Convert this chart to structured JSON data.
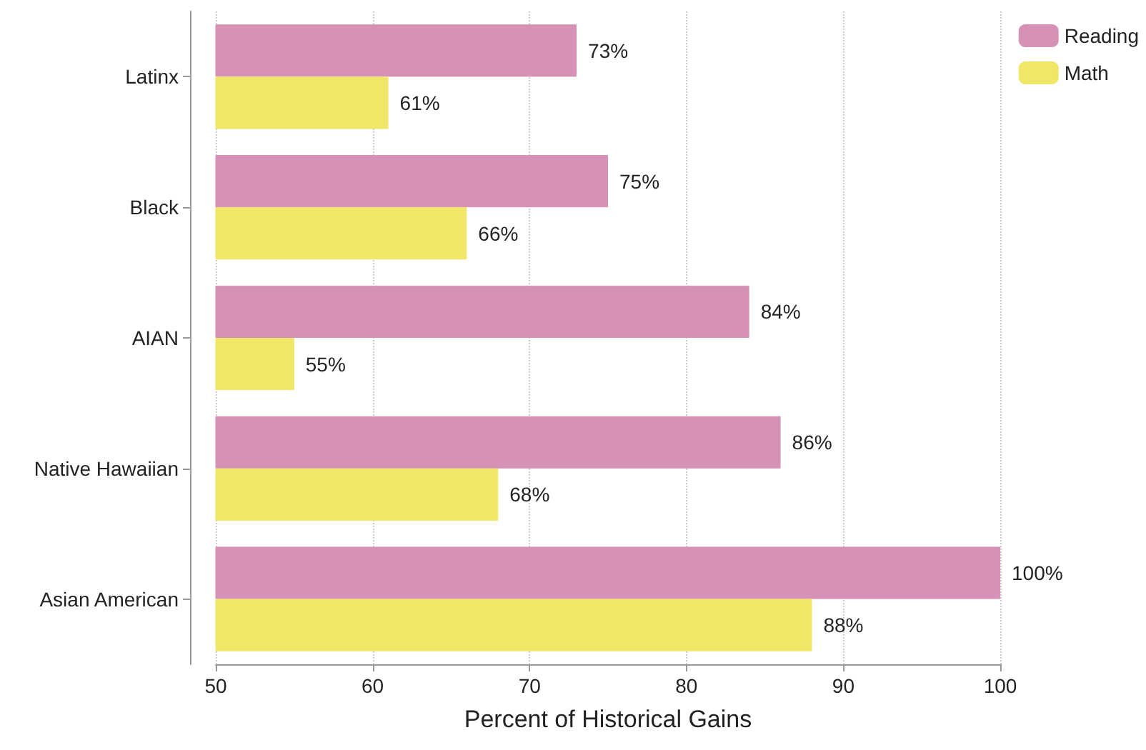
{
  "chart_data": {
    "type": "bar",
    "orientation": "horizontal",
    "xlabel": "Percent of Historical Gains",
    "categories": [
      "Latinx",
      "Black",
      "AIAN",
      "Native Hawaiian",
      "Asian American"
    ],
    "series": [
      {
        "name": "Reading",
        "color": "#d592b6",
        "values": [
          73,
          75,
          84,
          86,
          100
        ],
        "value_labels": [
          "73%",
          "75%",
          "84%",
          "86%",
          "100%"
        ]
      },
      {
        "name": "Math",
        "color": "#f0e668",
        "values": [
          61,
          66,
          55,
          68,
          88
        ],
        "value_labels": [
          "61%",
          "66%",
          "55%",
          "68%",
          "88%"
        ]
      }
    ],
    "xlim": [
      50,
      100
    ],
    "xticks": [
      50,
      60,
      70,
      80,
      90,
      100
    ],
    "grid": "x",
    "legend": "top right"
  }
}
